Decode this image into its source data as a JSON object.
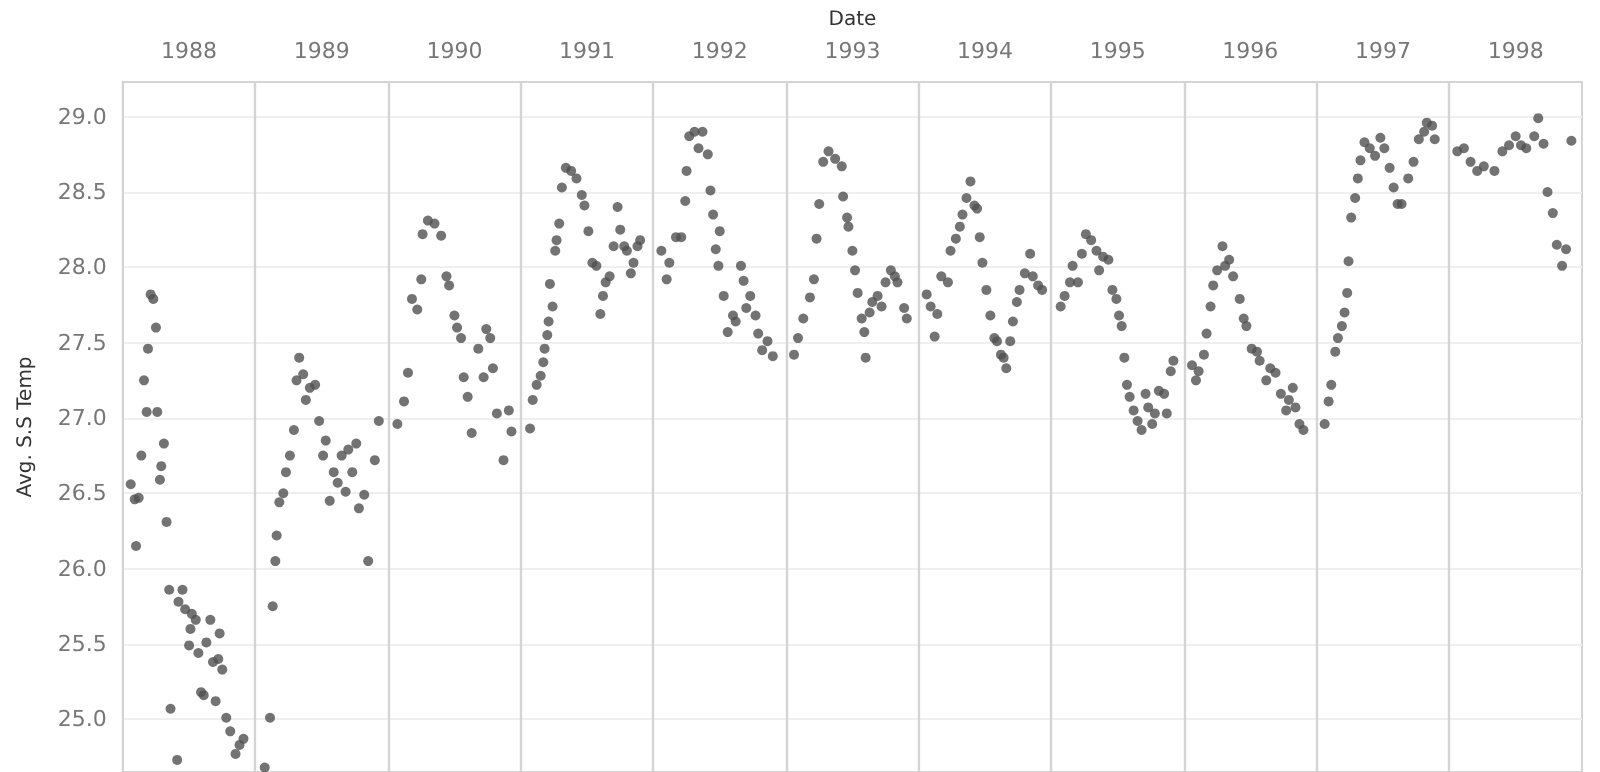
{
  "chart_data": {
    "type": "scatter",
    "xlabel": "Date",
    "ylabel": "Avg. S.S Temp",
    "xlim": [
      1988,
      1999
    ],
    "ylim": [
      24.65,
      29.23
    ],
    "xticks": [
      {
        "value": 1988.5,
        "label": "1988"
      },
      {
        "value": 1989.5,
        "label": "1989"
      },
      {
        "value": 1990.5,
        "label": "1990"
      },
      {
        "value": 1991.5,
        "label": "1991"
      },
      {
        "value": 1992.5,
        "label": "1992"
      },
      {
        "value": 1993.5,
        "label": "1993"
      },
      {
        "value": 1994.5,
        "label": "1994"
      },
      {
        "value": 1995.5,
        "label": "1995"
      },
      {
        "value": 1996.5,
        "label": "1996"
      },
      {
        "value": 1997.5,
        "label": "1997"
      },
      {
        "value": 1998.5,
        "label": "1998"
      }
    ],
    "yticks": [
      {
        "value": 25,
        "label": "25.0"
      },
      25.5,
      {
        "value": 26,
        "label": "26.0"
      },
      26.5,
      {
        "value": 27,
        "label": "27.0"
      },
      27.5,
      {
        "value": 28,
        "label": "28.0"
      },
      28.5,
      {
        "value": 29,
        "label": "29.0"
      }
    ],
    "grid": "y",
    "marker": "circle",
    "ref_lines": [
      {
        "axis": "x",
        "value": 1989,
        "label": null,
        "color": "#d4d4d4"
      },
      {
        "axis": "x",
        "value": 1990,
        "label": null,
        "color": "#d4d4d4"
      },
      {
        "axis": "x",
        "value": 1991,
        "label": null,
        "color": "#d4d4d4"
      },
      {
        "axis": "x",
        "value": 1992,
        "label": null,
        "color": "#d4d4d4"
      },
      {
        "axis": "x",
        "value": 1993,
        "label": null,
        "color": "#d4d4d4"
      },
      {
        "axis": "x",
        "value": 1994,
        "label": null,
        "color": "#d4d4d4"
      },
      {
        "axis": "x",
        "value": 1995,
        "label": null,
        "color": "#d4d4d4"
      },
      {
        "axis": "x",
        "value": 1996,
        "label": null,
        "color": "#d4d4d4"
      },
      {
        "axis": "x",
        "value": 1997,
        "label": null,
        "color": "#d4d4d4"
      },
      {
        "axis": "x",
        "value": 1998,
        "label": null,
        "color": "#d4d4d4"
      }
    ],
    "series": [
      {
        "color": "#505050",
        "x": [
          1988.06,
          1988.09,
          1988.1,
          1988.12,
          1988.14,
          1988.16,
          1988.18,
          1988.19,
          1988.21,
          1988.23,
          1988.25,
          1988.26,
          1988.28,
          1988.29,
          1988.31,
          1988.33,
          1988.35,
          1988.36,
          1988.41,
          1988.42,
          1988.45,
          1988.47,
          1988.5,
          1988.51,
          1988.52,
          1988.55,
          1988.57,
          1988.59,
          1988.61,
          1988.63,
          1988.66,
          1988.68,
          1988.7,
          1988.72,
          1988.73,
          1988.75,
          1988.78,
          1988.81,
          1988.85,
          1988.88,
          1988.91,
          1989.07,
          1989.11,
          1989.13,
          1989.15,
          1989.16,
          1989.18,
          1989.21,
          1989.23,
          1989.26,
          1989.29,
          1989.31,
          1989.33,
          1989.36,
          1989.38,
          1989.41,
          1989.45,
          1989.48,
          1989.51,
          1989.53,
          1989.56,
          1989.59,
          1989.62,
          1989.65,
          1989.68,
          1989.7,
          1989.73,
          1989.76,
          1989.78,
          1989.82,
          1989.85,
          1989.9,
          1989.93,
          1990.07,
          1990.12,
          1990.15,
          1990.18,
          1990.22,
          1990.25,
          1990.26,
          1990.3,
          1990.35,
          1990.4,
          1990.44,
          1990.46,
          1990.5,
          1990.52,
          1990.55,
          1990.57,
          1990.6,
          1990.63,
          1990.68,
          1990.72,
          1990.74,
          1990.77,
          1990.79,
          1990.82,
          1990.87,
          1990.91,
          1990.93,
          1991.07,
          1991.09,
          1991.12,
          1991.15,
          1991.17,
          1991.18,
          1991.2,
          1991.21,
          1991.22,
          1991.24,
          1991.26,
          1991.27,
          1991.29,
          1991.31,
          1991.34,
          1991.38,
          1991.42,
          1991.46,
          1991.48,
          1991.51,
          1991.54,
          1991.57,
          1991.6,
          1991.62,
          1991.64,
          1991.67,
          1991.7,
          1991.73,
          1991.75,
          1991.78,
          1991.8,
          1991.83,
          1991.85,
          1991.88,
          1991.9,
          1992.06,
          1992.1,
          1992.12,
          1992.17,
          1992.21,
          1992.24,
          1992.25,
          1992.27,
          1992.31,
          1992.34,
          1992.37,
          1992.41,
          1992.43,
          1992.45,
          1992.47,
          1992.49,
          1992.5,
          1992.53,
          1992.56,
          1992.6,
          1992.62,
          1992.66,
          1992.68,
          1992.7,
          1992.73,
          1992.77,
          1992.79,
          1992.82,
          1992.86,
          1992.9,
          1993.06,
          1993.09,
          1993.13,
          1993.18,
          1993.21,
          1993.23,
          1993.25,
          1993.28,
          1993.32,
          1993.37,
          1993.42,
          1993.43,
          1993.46,
          1993.47,
          1993.5,
          1993.52,
          1993.54,
          1993.57,
          1993.59,
          1993.6,
          1993.63,
          1993.65,
          1993.69,
          1993.72,
          1993.75,
          1993.79,
          1993.82,
          1993.84,
          1993.89,
          1993.91,
          1994.06,
          1994.09,
          1994.12,
          1994.14,
          1994.17,
          1994.22,
          1994.24,
          1994.28,
          1994.31,
          1994.33,
          1994.36,
          1994.39,
          1994.42,
          1994.44,
          1994.46,
          1994.48,
          1994.51,
          1994.54,
          1994.57,
          1994.59,
          1994.62,
          1994.64,
          1994.66,
          1994.69,
          1994.71,
          1994.74,
          1994.76,
          1994.8,
          1994.84,
          1994.86,
          1994.9,
          1994.93,
          1995.07,
          1995.1,
          1995.14,
          1995.16,
          1995.2,
          1995.23,
          1995.26,
          1995.3,
          1995.34,
          1995.36,
          1995.39,
          1995.43,
          1995.46,
          1995.49,
          1995.51,
          1995.53,
          1995.55,
          1995.57,
          1995.59,
          1995.62,
          1995.65,
          1995.68,
          1995.71,
          1995.73,
          1995.76,
          1995.78,
          1995.81,
          1995.85,
          1995.87,
          1995.9,
          1995.92,
          1996.06,
          1996.09,
          1996.11,
          1996.15,
          1996.17,
          1996.2,
          1996.22,
          1996.25,
          1996.29,
          1996.31,
          1996.34,
          1996.37,
          1996.42,
          1996.45,
          1996.47,
          1996.51,
          1996.55,
          1996.57,
          1996.62,
          1996.65,
          1996.69,
          1996.73,
          1996.77,
          1996.79,
          1996.82,
          1996.84,
          1996.87,
          1996.9,
          1997.06,
          1997.09,
          1997.11,
          1997.14,
          1997.16,
          1997.19,
          1997.21,
          1997.23,
          1997.24,
          1997.26,
          1997.29,
          1997.31,
          1997.33,
          1997.36,
          1997.4,
          1997.44,
          1997.48,
          1997.51,
          1997.55,
          1997.58,
          1997.61,
          1997.64,
          1997.69,
          1997.73,
          1997.77,
          1997.81,
          1997.83,
          1997.87,
          1997.89,
          1998.06,
          1998.11,
          1998.16,
          1998.21,
          1998.26,
          1998.34,
          1998.4,
          1998.45,
          1998.5,
          1998.54,
          1998.58,
          1998.64,
          1998.67,
          1998.71,
          1998.74,
          1998.78,
          1998.81,
          1998.85,
          1998.88,
          1998.92
        ],
        "values": [
          26.56,
          26.46,
          26.15,
          26.47,
          26.75,
          27.25,
          27.04,
          27.46,
          27.82,
          27.79,
          27.6,
          27.04,
          26.59,
          26.68,
          26.83,
          26.31,
          25.86,
          25.07,
          24.73,
          25.78,
          25.86,
          25.73,
          25.49,
          25.6,
          25.7,
          25.66,
          25.44,
          25.18,
          25.16,
          25.51,
          25.66,
          25.38,
          25.12,
          25.4,
          25.57,
          25.33,
          25.01,
          24.92,
          24.77,
          24.83,
          24.87,
          24.68,
          25.01,
          25.75,
          26.05,
          26.22,
          26.44,
          26.5,
          26.64,
          26.75,
          26.92,
          27.25,
          27.4,
          27.29,
          27.12,
          27.2,
          27.22,
          26.98,
          26.75,
          26.85,
          26.45,
          26.64,
          26.57,
          26.75,
          26.51,
          26.79,
          26.64,
          26.83,
          26.4,
          26.49,
          26.05,
          26.72,
          26.98,
          26.96,
          27.11,
          27.3,
          27.79,
          27.72,
          27.92,
          28.22,
          28.31,
          28.29,
          28.21,
          27.94,
          27.88,
          27.68,
          27.6,
          27.53,
          27.27,
          27.14,
          26.9,
          27.46,
          27.27,
          27.59,
          27.53,
          27.33,
          27.03,
          26.72,
          27.05,
          26.91,
          26.93,
          27.12,
          27.22,
          27.28,
          27.37,
          27.46,
          27.55,
          27.64,
          27.89,
          27.74,
          28.11,
          28.18,
          28.29,
          28.53,
          28.66,
          28.64,
          28.59,
          28.48,
          28.41,
          28.24,
          28.03,
          28.01,
          27.69,
          27.81,
          27.9,
          27.94,
          28.14,
          28.4,
          28.25,
          28.14,
          28.11,
          27.96,
          28.03,
          28.14,
          28.18,
          28.11,
          27.92,
          28.03,
          28.2,
          28.2,
          28.44,
          28.64,
          28.87,
          28.9,
          28.79,
          28.9,
          28.75,
          28.51,
          28.35,
          28.12,
          28.01,
          28.24,
          27.81,
          27.57,
          27.68,
          27.64,
          28.01,
          27.91,
          27.73,
          27.81,
          27.68,
          27.56,
          27.45,
          27.51,
          27.41,
          27.42,
          27.53,
          27.66,
          27.8,
          27.92,
          28.19,
          28.42,
          28.7,
          28.77,
          28.72,
          28.67,
          28.47,
          28.33,
          28.27,
          28.11,
          27.98,
          27.83,
          27.66,
          27.57,
          27.4,
          27.7,
          27.77,
          27.81,
          27.74,
          27.9,
          27.98,
          27.94,
          27.9,
          27.73,
          27.66,
          27.82,
          27.74,
          27.54,
          27.69,
          27.94,
          27.9,
          28.11,
          28.19,
          28.27,
          28.35,
          28.46,
          28.57,
          28.41,
          28.39,
          28.2,
          28.03,
          27.85,
          27.68,
          27.53,
          27.51,
          27.42,
          27.4,
          27.33,
          27.51,
          27.64,
          27.77,
          27.85,
          27.96,
          28.09,
          27.94,
          27.88,
          27.85,
          27.74,
          27.81,
          27.9,
          28.01,
          27.9,
          28.09,
          28.22,
          28.18,
          28.11,
          27.98,
          28.07,
          28.05,
          27.85,
          27.79,
          27.68,
          27.61,
          27.4,
          27.22,
          27.14,
          27.05,
          26.98,
          26.92,
          27.16,
          27.07,
          26.96,
          27.03,
          27.18,
          27.16,
          27.03,
          27.31,
          27.38,
          27.35,
          27.25,
          27.31,
          27.42,
          27.56,
          27.74,
          27.88,
          27.98,
          28.14,
          28.01,
          28.05,
          27.94,
          27.79,
          27.66,
          27.61,
          27.46,
          27.44,
          27.38,
          27.25,
          27.33,
          27.3,
          27.16,
          27.05,
          27.12,
          27.2,
          27.07,
          26.96,
          26.92,
          26.96,
          27.11,
          27.22,
          27.44,
          27.53,
          27.61,
          27.7,
          27.83,
          28.04,
          28.33,
          28.46,
          28.59,
          28.71,
          28.83,
          28.79,
          28.74,
          28.86,
          28.79,
          28.66,
          28.53,
          28.42,
          28.42,
          28.59,
          28.7,
          28.85,
          28.9,
          28.96,
          28.94,
          28.85,
          28.77,
          28.79,
          28.7,
          28.64,
          28.67,
          28.64,
          28.77,
          28.81,
          28.87,
          28.81,
          28.79,
          28.87,
          28.99,
          28.82,
          28.5,
          28.36,
          28.15,
          28.01,
          28.12,
          28.84
        ]
      }
    ]
  }
}
